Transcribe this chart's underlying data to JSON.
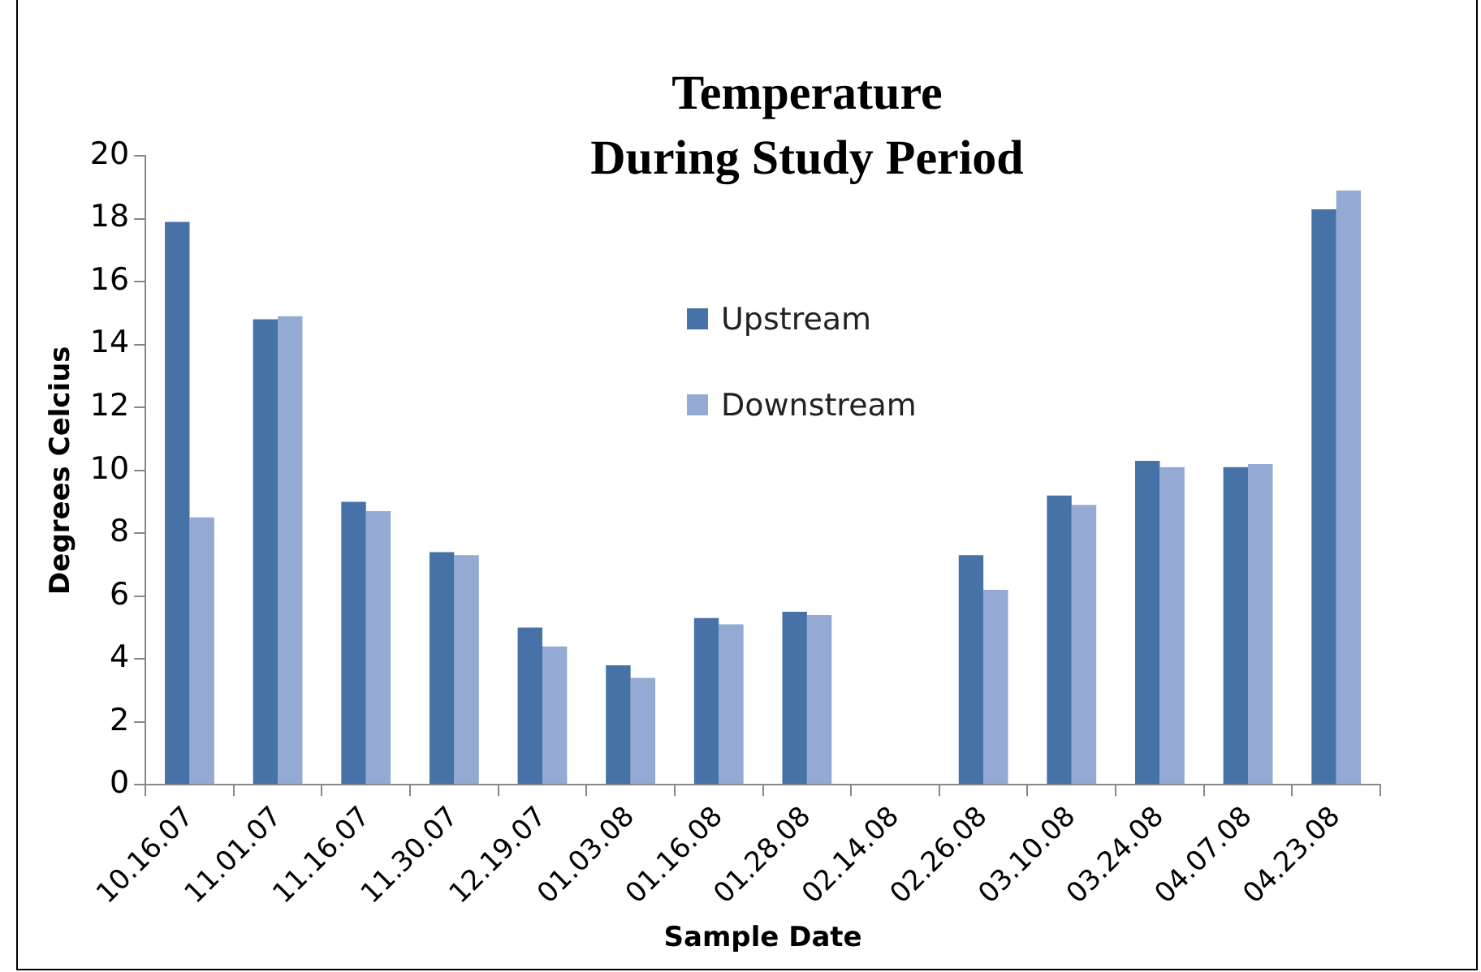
{
  "chart_data": {
    "type": "bar",
    "title": "Temperature\nDuring Study Period",
    "xlabel": "Sample Date",
    "ylabel": "Degrees Celcius",
    "categories": [
      "10.16.07",
      "11.01.07",
      "11.16.07",
      "11.30.07",
      "12.19.07",
      "01.03.08",
      "01.16.08",
      "01.28.08",
      "02.14.08",
      "02.26.08",
      "03.10.08",
      "03.24.08",
      "04.07.08",
      "04.23.08"
    ],
    "series": [
      {
        "name": "Upstream",
        "color": "#4672a8",
        "values": [
          17.9,
          14.8,
          9.0,
          7.4,
          5.0,
          3.8,
          5.3,
          5.5,
          null,
          7.3,
          9.2,
          10.3,
          10.1,
          18.3
        ]
      },
      {
        "name": "Downstream",
        "color": "#94aad2",
        "values": [
          8.5,
          14.9,
          8.7,
          7.3,
          4.4,
          3.4,
          5.1,
          5.4,
          null,
          6.2,
          8.9,
          10.1,
          10.2,
          18.9
        ]
      }
    ],
    "ylim": [
      0,
      20
    ],
    "yticks": [
      0,
      2,
      4,
      6,
      8,
      10,
      12,
      14,
      16,
      18,
      20
    ],
    "legend": "top"
  }
}
